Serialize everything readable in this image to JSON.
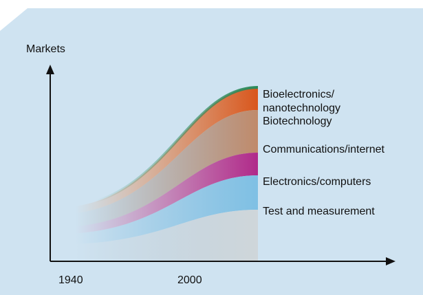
{
  "y_axis_label": "Markets",
  "x_axis_labels": [
    "1940",
    "2000"
  ],
  "layers": [
    {
      "label_lines": [
        "Bioelectronics/",
        "nanotechnology"
      ]
    },
    {
      "label_lines": [
        "Biotechnology"
      ]
    },
    {
      "label_lines": [
        "Communications/internet"
      ]
    },
    {
      "label_lines": [
        "Electronics/computers"
      ]
    },
    {
      "label_lines": [
        "Test and measurement"
      ]
    }
  ]
}
